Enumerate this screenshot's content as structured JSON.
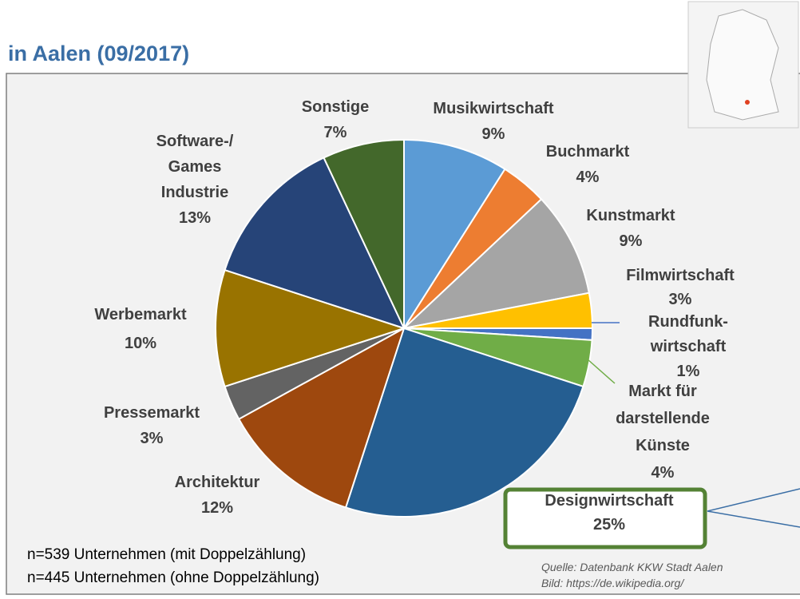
{
  "chart_data": {
    "type": "pie",
    "title": "in Aalen (09/2017)",
    "categories": [
      "Musikwirtschaft",
      "Buchmarkt",
      "Kunstmarkt",
      "Filmwirtschaft",
      "Rundfunk-\nwirtschaft",
      "Markt für\ndarstellende\nKünste",
      "Designwirtschaft",
      "Architektur",
      "Pressemarkt",
      "Werbemarkt",
      "Software-/\nGames\nIndustrie",
      "Sonstige"
    ],
    "values": [
      9,
      4,
      9,
      3,
      1,
      4,
      25,
      12,
      3,
      10,
      13,
      7
    ],
    "value_labels": [
      "9%",
      "4%",
      "9%",
      "3%",
      "1%",
      "4%",
      "25%",
      "12%",
      "3%",
      "10%",
      "13%",
      "7%"
    ],
    "colors": [
      "#5b9bd5",
      "#ed7d31",
      "#a5a5a5",
      "#ffc000",
      "#4472c4",
      "#70ad47",
      "#255e91",
      "#9e480e",
      "#636363",
      "#997300",
      "#264478",
      "#43682b"
    ],
    "notes": [
      "n=539 Unternehmen (mit Doppelzählung)",
      "n=445 Unternehmen (ohne Doppelzählung)"
    ],
    "source": [
      "Quelle: Datenbank KKW Stadt Aalen",
      "Bild: https://de.wikipedia.org/"
    ]
  }
}
